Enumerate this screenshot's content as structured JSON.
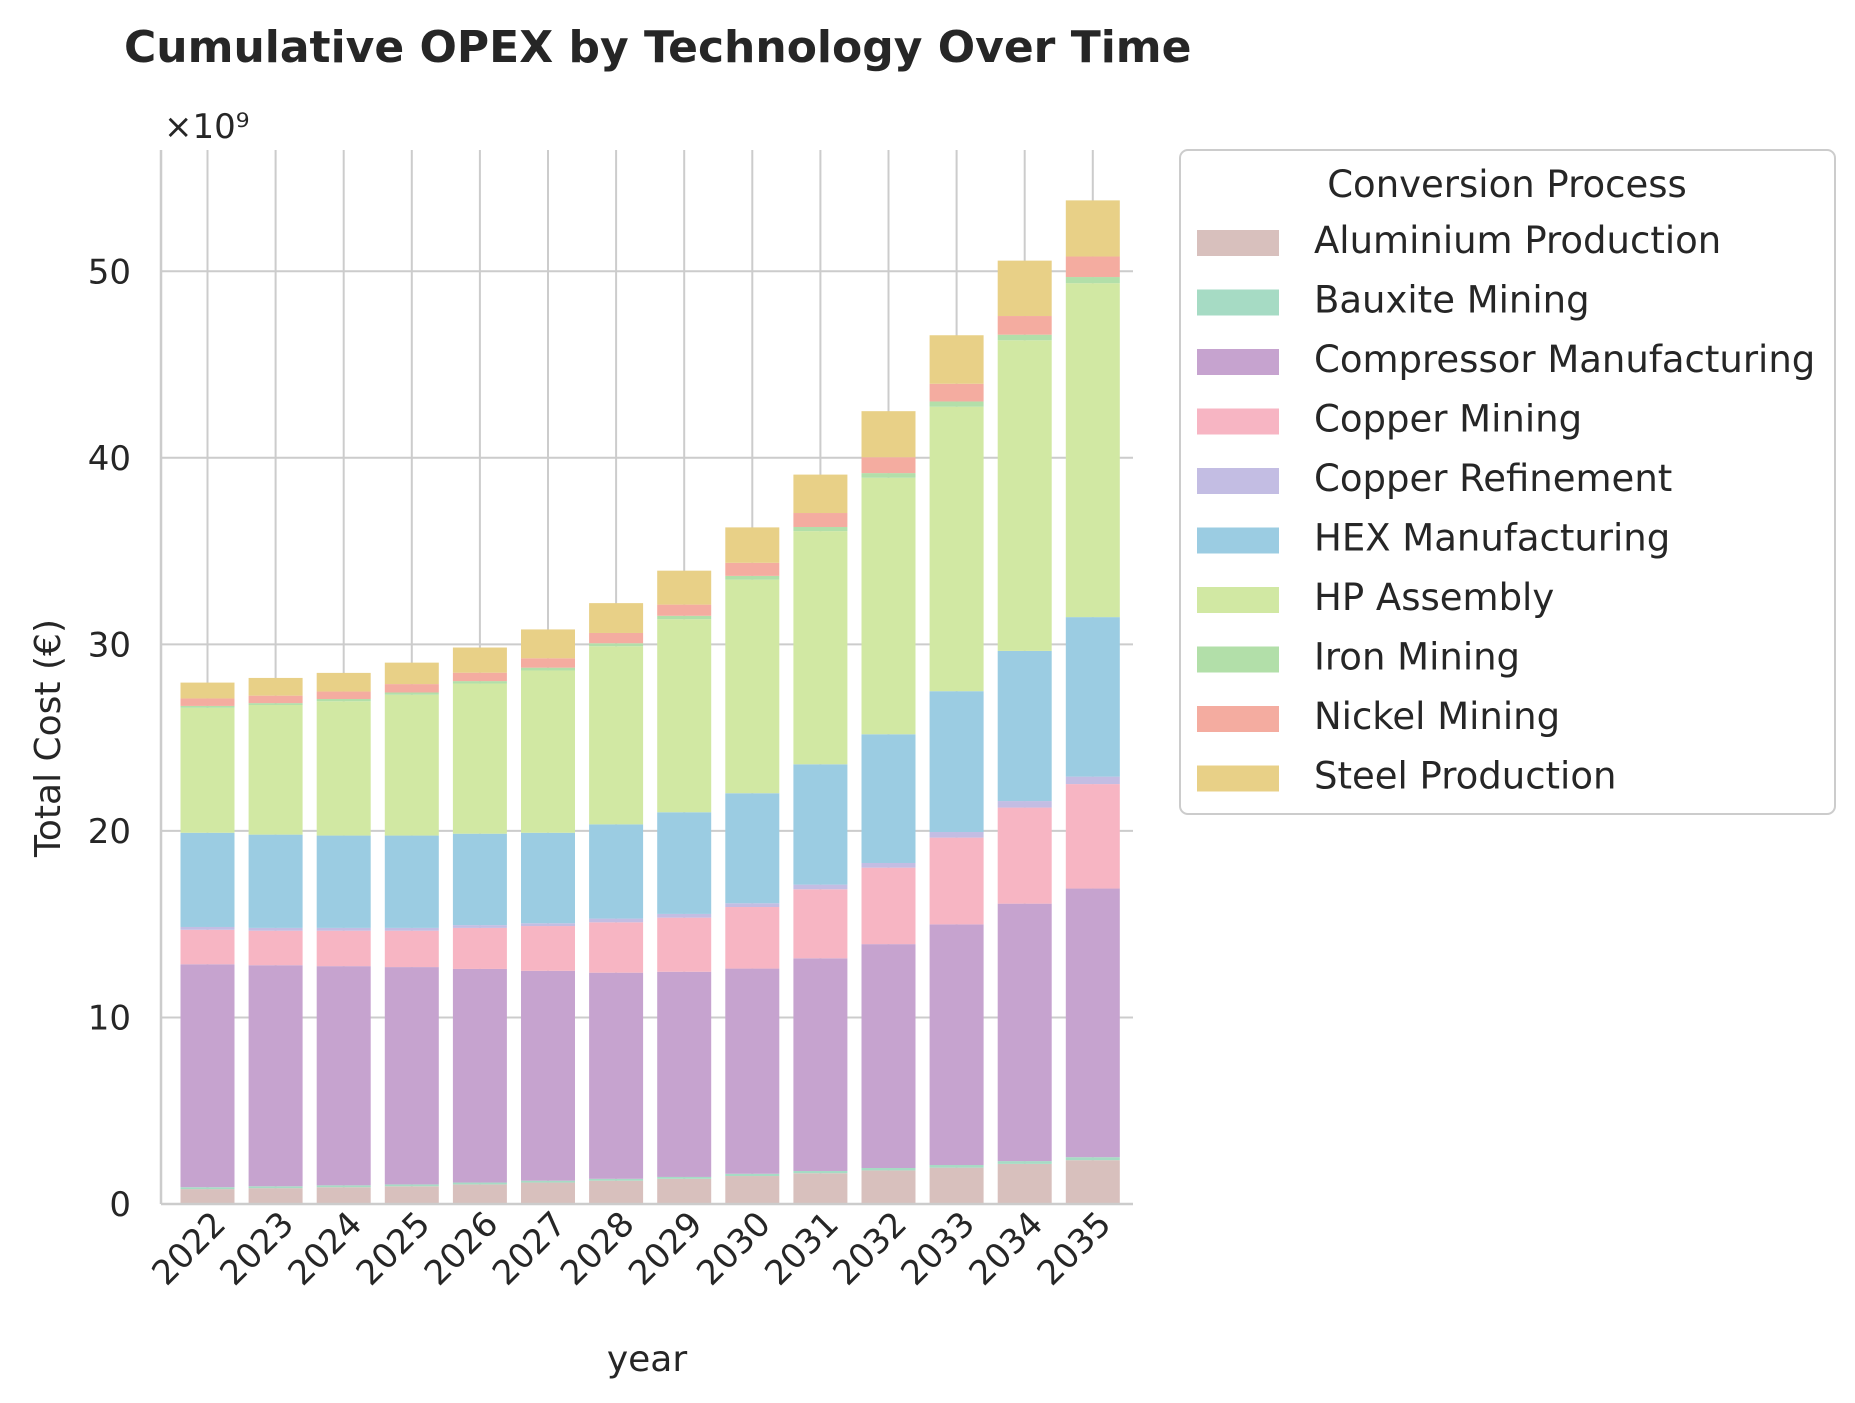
{
  "chart_data": {
    "type": "bar",
    "stacked": true,
    "title": "Cumulative OPEX by Technology Over Time",
    "xlabel": "year",
    "ylabel": "Total Cost (€)",
    "y_offset_label": "×10⁹",
    "ylim": [
      0,
      56.5
    ],
    "yticks": [
      0,
      10,
      20,
      30,
      40,
      50
    ],
    "grid": true,
    "legend": {
      "title": "Conversion Process",
      "position": "right-outside-top"
    },
    "categories": [
      "2022",
      "2023",
      "2024",
      "2025",
      "2026",
      "2027",
      "2028",
      "2029",
      "2030",
      "2031",
      "2032",
      "2033",
      "2034",
      "2035"
    ],
    "series": [
      {
        "name": "Aluminium Production",
        "color": "#d8c0bd",
        "values": [
          0.8,
          0.85,
          0.9,
          0.95,
          1.05,
          1.15,
          1.25,
          1.35,
          1.5,
          1.65,
          1.8,
          1.95,
          2.15,
          2.35
        ]
      },
      {
        "name": "Bauxite Mining",
        "color": "#a6dbc4",
        "values": [
          0.1,
          0.1,
          0.1,
          0.1,
          0.1,
          0.1,
          0.1,
          0.1,
          0.12,
          0.12,
          0.13,
          0.14,
          0.15,
          0.16
        ]
      },
      {
        "name": "Compressor Manufacturing",
        "color": "#c6a3cf",
        "values": [
          11.95,
          11.85,
          11.75,
          11.65,
          11.45,
          11.25,
          11.05,
          11.0,
          11.0,
          11.4,
          12.0,
          12.9,
          13.8,
          14.4
        ]
      },
      {
        "name": "Copper Mining",
        "color": "#f7b5c3",
        "values": [
          1.85,
          1.85,
          1.9,
          1.95,
          2.2,
          2.4,
          2.7,
          2.9,
          3.3,
          3.7,
          4.1,
          4.65,
          5.15,
          5.6
        ]
      },
      {
        "name": "Copper Refinement",
        "color": "#c3bde3",
        "values": [
          0.15,
          0.15,
          0.15,
          0.15,
          0.15,
          0.15,
          0.2,
          0.2,
          0.2,
          0.25,
          0.25,
          0.3,
          0.35,
          0.4
        ]
      },
      {
        "name": "HEX Manufacturing",
        "color": "#9bcce2",
        "values": [
          5.05,
          5.0,
          4.95,
          4.95,
          4.9,
          4.85,
          5.05,
          5.45,
          5.9,
          6.45,
          6.9,
          7.55,
          8.05,
          8.55
        ]
      },
      {
        "name": "HP Assembly",
        "color": "#d1e8a3",
        "values": [
          6.7,
          6.95,
          7.2,
          7.55,
          8.05,
          8.7,
          9.55,
          10.35,
          11.45,
          12.5,
          13.75,
          15.25,
          16.65,
          17.9
        ]
      },
      {
        "name": "Iron Mining",
        "color": "#b2dfa9",
        "values": [
          0.1,
          0.1,
          0.12,
          0.12,
          0.13,
          0.15,
          0.16,
          0.18,
          0.2,
          0.22,
          0.25,
          0.28,
          0.3,
          0.33
        ]
      },
      {
        "name": "Nickel Mining",
        "color": "#f4aca0",
        "values": [
          0.4,
          0.4,
          0.4,
          0.45,
          0.45,
          0.5,
          0.55,
          0.6,
          0.7,
          0.75,
          0.85,
          0.95,
          1.0,
          1.1
        ]
      },
      {
        "name": "Steel Production",
        "color": "#e8d087",
        "values": [
          0.85,
          0.95,
          1.0,
          1.15,
          1.35,
          1.55,
          1.6,
          1.82,
          1.9,
          2.06,
          2.47,
          2.6,
          2.97,
          3.01
        ]
      }
    ]
  }
}
